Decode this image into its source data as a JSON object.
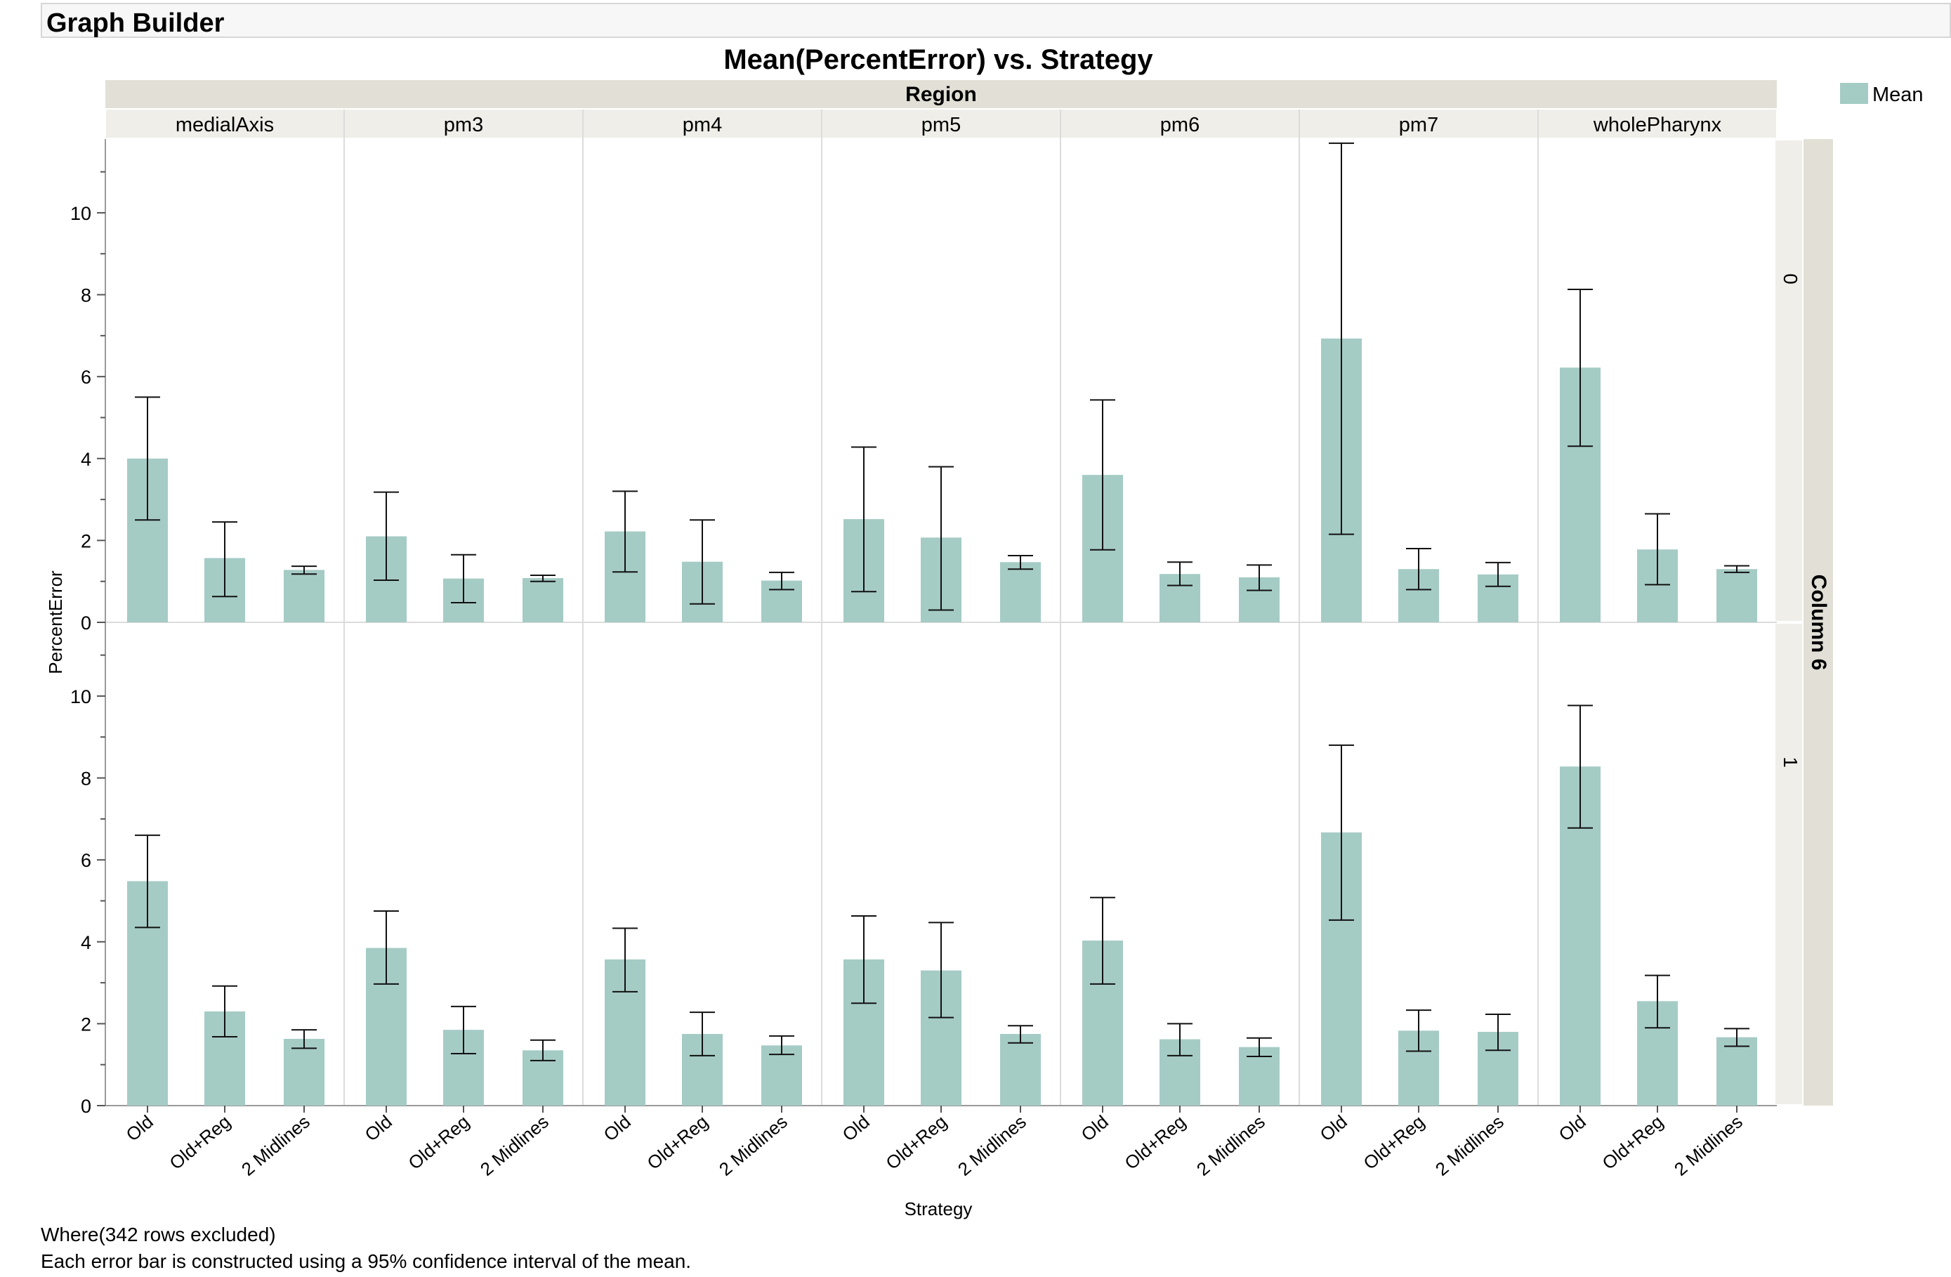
{
  "window": {
    "title": "Graph Builder"
  },
  "chart_data": {
    "type": "bar",
    "title": "Mean(PercentError) vs. Strategy",
    "xlabel": "Strategy",
    "ylabel": "PercentError",
    "x_group_title": "Region",
    "y_group_title": "Column 6",
    "ylim": [
      0,
      11.8
    ],
    "yticks": [
      0,
      2,
      4,
      6,
      8,
      10
    ],
    "legend": {
      "position": "top-right",
      "entries": [
        "Mean"
      ]
    },
    "bar_color": "#a5cbc5",
    "error_bar": "95% confidence interval of the mean",
    "categories": [
      "Old",
      "Old+Reg",
      "2 Midlines"
    ],
    "regions": [
      "medialAxis",
      "pm3",
      "pm4",
      "pm5",
      "pm6",
      "pm7",
      "wholePharynx"
    ],
    "rows": [
      {
        "label": "0",
        "panels": [
          {
            "region": "medialAxis",
            "values": [
              4.0,
              1.57,
              1.28
            ],
            "lower": [
              2.5,
              0.63,
              1.18
            ],
            "upper": [
              5.5,
              2.45,
              1.37
            ]
          },
          {
            "region": "pm3",
            "values": [
              2.1,
              1.07,
              1.08
            ],
            "lower": [
              1.03,
              0.48,
              1.0
            ],
            "upper": [
              3.18,
              1.65,
              1.15
            ]
          },
          {
            "region": "pm4",
            "values": [
              2.22,
              1.48,
              1.02
            ],
            "lower": [
              1.23,
              0.45,
              0.8
            ],
            "upper": [
              3.2,
              2.5,
              1.22
            ]
          },
          {
            "region": "pm5",
            "values": [
              2.52,
              2.07,
              1.47
            ],
            "lower": [
              0.75,
              0.3,
              1.3
            ],
            "upper": [
              4.28,
              3.8,
              1.63
            ]
          },
          {
            "region": "pm6",
            "values": [
              3.6,
              1.18,
              1.1
            ],
            "lower": [
              1.77,
              0.9,
              0.78
            ],
            "upper": [
              5.43,
              1.47,
              1.4
            ]
          },
          {
            "region": "pm7",
            "values": [
              6.93,
              1.3,
              1.17
            ],
            "lower": [
              2.15,
              0.8,
              0.88
            ],
            "upper": [
              11.7,
              1.8,
              1.46
            ]
          },
          {
            "region": "wholePharynx",
            "values": [
              6.22,
              1.78,
              1.3
            ],
            "lower": [
              4.3,
              0.92,
              1.22
            ],
            "upper": [
              8.13,
              2.65,
              1.38
            ]
          }
        ]
      },
      {
        "label": "1",
        "panels": [
          {
            "region": "medialAxis",
            "values": [
              5.48,
              2.3,
              1.63
            ],
            "lower": [
              4.35,
              1.68,
              1.4
            ],
            "upper": [
              6.6,
              2.92,
              1.85
            ]
          },
          {
            "region": "pm3",
            "values": [
              3.85,
              1.85,
              1.35
            ],
            "lower": [
              2.97,
              1.27,
              1.1
            ],
            "upper": [
              4.75,
              2.42,
              1.6
            ]
          },
          {
            "region": "pm4",
            "values": [
              3.57,
              1.75,
              1.47
            ],
            "lower": [
              2.78,
              1.22,
              1.25
            ],
            "upper": [
              4.33,
              2.28,
              1.7
            ]
          },
          {
            "region": "pm5",
            "values": [
              3.57,
              3.3,
              1.75
            ],
            "lower": [
              2.5,
              2.15,
              1.53
            ],
            "upper": [
              4.63,
              4.47,
              1.95
            ]
          },
          {
            "region": "pm6",
            "values": [
              4.03,
              1.62,
              1.43
            ],
            "lower": [
              2.97,
              1.22,
              1.2
            ],
            "upper": [
              5.08,
              2.0,
              1.65
            ]
          },
          {
            "region": "pm7",
            "values": [
              6.67,
              1.83,
              1.8
            ],
            "lower": [
              4.53,
              1.33,
              1.35
            ],
            "upper": [
              8.8,
              2.33,
              2.23
            ]
          },
          {
            "region": "wholePharynx",
            "values": [
              8.28,
              2.55,
              1.67
            ],
            "lower": [
              6.78,
              1.9,
              1.45
            ],
            "upper": [
              9.77,
              3.18,
              1.88
            ]
          }
        ]
      }
    ]
  },
  "footer": {
    "where": "Where(342 rows excluded)",
    "note": "Each error bar is constructed using a 95% confidence interval of the mean."
  }
}
